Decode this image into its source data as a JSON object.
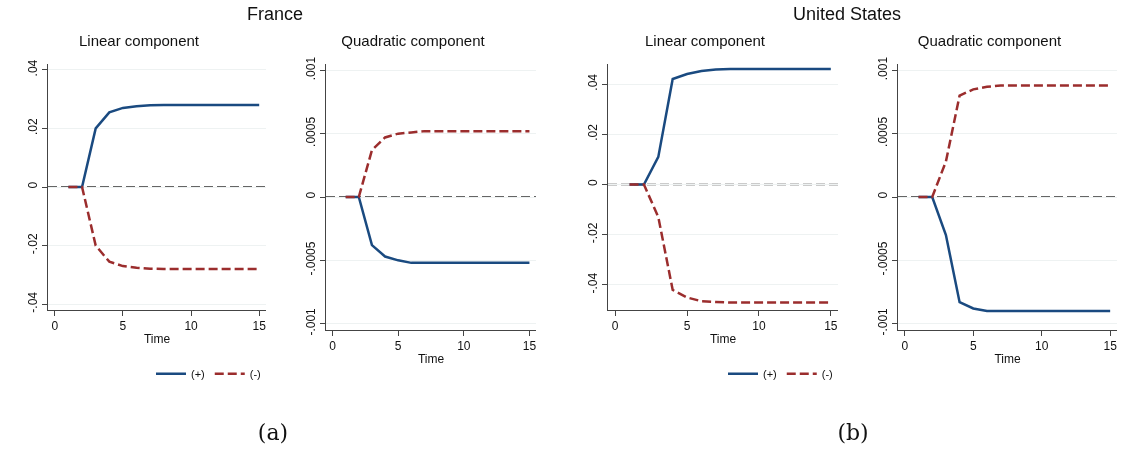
{
  "chart_data": [
    {
      "type": "line",
      "title": "Linear component",
      "xlabel": "Time",
      "annotations": [
        "France",
        "(a)"
      ],
      "x": [
        1,
        2,
        3,
        4,
        5,
        6,
        7,
        8,
        9,
        10,
        11,
        12,
        13,
        14,
        15
      ],
      "series": [
        {
          "name": "(+)",
          "color": "#1a4a80",
          "line_style": "solid",
          "values": [
            0,
            0,
            0.02,
            0.0255,
            0.027,
            0.0276,
            0.0279,
            0.028,
            0.028,
            0.028,
            0.028,
            0.028,
            0.028,
            0.028,
            0.028
          ]
        },
        {
          "name": "(-)",
          "color": "#9b2d2d",
          "line_style": "dashed",
          "values": [
            0,
            0,
            -0.02,
            -0.0255,
            -0.027,
            -0.0276,
            -0.0279,
            -0.028,
            -0.028,
            -0.028,
            -0.028,
            -0.028,
            -0.028,
            -0.028,
            -0.028
          ]
        }
      ],
      "xlim": [
        -0.5,
        15.5
      ],
      "xticks": [
        0,
        5,
        10,
        15
      ],
      "ylim": [
        -0.042,
        0.042
      ],
      "yticks": [
        {
          "value": -0.04,
          "label": "-.04"
        },
        {
          "value": -0.02,
          "label": "-.02"
        },
        {
          "value": 0,
          "label": "0"
        },
        {
          "value": 0.02,
          "label": ".02"
        },
        {
          "value": 0.04,
          "label": ".04"
        }
      ],
      "ref_lines": [
        {
          "axis": "y",
          "value": 0,
          "color": "#333333",
          "line_style": "dashed"
        }
      ],
      "grid": "y",
      "legend": "bottom right"
    },
    {
      "type": "line",
      "title": "Quadratic component",
      "xlabel": "Time",
      "x": [
        1,
        2,
        3,
        4,
        5,
        6,
        7,
        8,
        9,
        10,
        11,
        12,
        13,
        14,
        15
      ],
      "series": [
        {
          "color": "#1a4a80",
          "line_style": "solid",
          "values": [
            0,
            0,
            -0.00038,
            -0.00047,
            -0.0005,
            -0.00052,
            -0.00052,
            -0.00052,
            -0.00052,
            -0.00052,
            -0.00052,
            -0.00052,
            -0.00052,
            -0.00052,
            -0.00052
          ]
        },
        {
          "color": "#9b2d2d",
          "line_style": "dashed",
          "values": [
            0,
            0,
            0.00037,
            0.00047,
            0.0005,
            0.00051,
            0.00052,
            0.00052,
            0.00052,
            0.00052,
            0.00052,
            0.00052,
            0.00052,
            0.00052,
            0.00052
          ]
        }
      ],
      "xlim": [
        -0.5,
        15.5
      ],
      "xticks": [
        0,
        5,
        10,
        15
      ],
      "ylim": [
        -0.00105,
        0.00105
      ],
      "yticks": [
        {
          "value": -0.001,
          "label": "-.001"
        },
        {
          "value": -0.0005,
          "label": "-.0005"
        },
        {
          "value": 0,
          "label": "0"
        },
        {
          "value": 0.0005,
          "label": ".0005"
        },
        {
          "value": 0.001,
          "label": ".001"
        }
      ],
      "ref_lines": [
        {
          "axis": "y",
          "value": 0,
          "color": "#333333",
          "line_style": "dashed"
        }
      ],
      "grid": "y"
    },
    {
      "type": "line",
      "title": "Linear component",
      "xlabel": "Time",
      "annotations": [
        "United States",
        "(b)"
      ],
      "x": [
        1,
        2,
        3,
        4,
        5,
        6,
        7,
        8,
        9,
        10,
        11,
        12,
        13,
        14,
        15
      ],
      "series": [
        {
          "name": "(+)",
          "color": "#1a4a80",
          "line_style": "solid",
          "values": [
            0,
            0,
            0.011,
            0.042,
            0.044,
            0.0452,
            0.0458,
            0.046,
            0.046,
            0.046,
            0.046,
            0.046,
            0.046,
            0.046,
            0.046
          ]
        },
        {
          "name": "(-)",
          "color": "#9b2d2d",
          "line_style": "dashed",
          "values": [
            0,
            0,
            -0.013,
            -0.042,
            -0.045,
            -0.0465,
            -0.0468,
            -0.047,
            -0.047,
            -0.047,
            -0.047,
            -0.047,
            -0.047,
            -0.047,
            -0.047
          ]
        }
      ],
      "xlim": [
        -0.5,
        15.5
      ],
      "xticks": [
        0,
        5,
        10,
        15
      ],
      "ylim": [
        -0.05,
        0.048
      ],
      "yticks": [
        {
          "value": -0.04,
          "label": "-.04"
        },
        {
          "value": -0.02,
          "label": "-.02"
        },
        {
          "value": 0,
          "label": "0"
        },
        {
          "value": 0.02,
          "label": ".02"
        },
        {
          "value": 0.04,
          "label": ".04"
        }
      ],
      "ref_lines": [
        {
          "axis": "y",
          "value": 0,
          "color": "#333333",
          "line_style": "dashed"
        }
      ],
      "grid": "y",
      "legend": "bottom right"
    },
    {
      "type": "line",
      "title": "Quadratic component",
      "xlabel": "Time",
      "x": [
        1,
        2,
        3,
        4,
        5,
        6,
        7,
        8,
        9,
        10,
        11,
        12,
        13,
        14,
        15
      ],
      "series": [
        {
          "color": "#1a4a80",
          "line_style": "solid",
          "values": [
            0,
            0,
            -0.0003,
            -0.00083,
            -0.00088,
            -0.0009,
            -0.0009,
            -0.0009,
            -0.0009,
            -0.0009,
            -0.0009,
            -0.0009,
            -0.0009,
            -0.0009,
            -0.0009
          ]
        },
        {
          "color": "#9b2d2d",
          "line_style": "dashed",
          "values": [
            0,
            0,
            0.00028,
            0.0008,
            0.00085,
            0.00087,
            0.00088,
            0.00088,
            0.00088,
            0.00088,
            0.00088,
            0.00088,
            0.00088,
            0.00088,
            0.00088
          ]
        }
      ],
      "xlim": [
        -0.5,
        15.5
      ],
      "xticks": [
        0,
        5,
        10,
        15
      ],
      "ylim": [
        -0.00105,
        0.00105
      ],
      "yticks": [
        {
          "value": -0.001,
          "label": "-.001"
        },
        {
          "value": -0.0005,
          "label": "-.0005"
        },
        {
          "value": 0,
          "label": "0"
        },
        {
          "value": 0.0005,
          "label": ".0005"
        },
        {
          "value": 0.001,
          "label": ".001"
        }
      ],
      "ref_lines": [
        {
          "axis": "y",
          "value": 0,
          "color": "#333333",
          "line_style": "dashed"
        }
      ],
      "grid": "y"
    }
  ]
}
